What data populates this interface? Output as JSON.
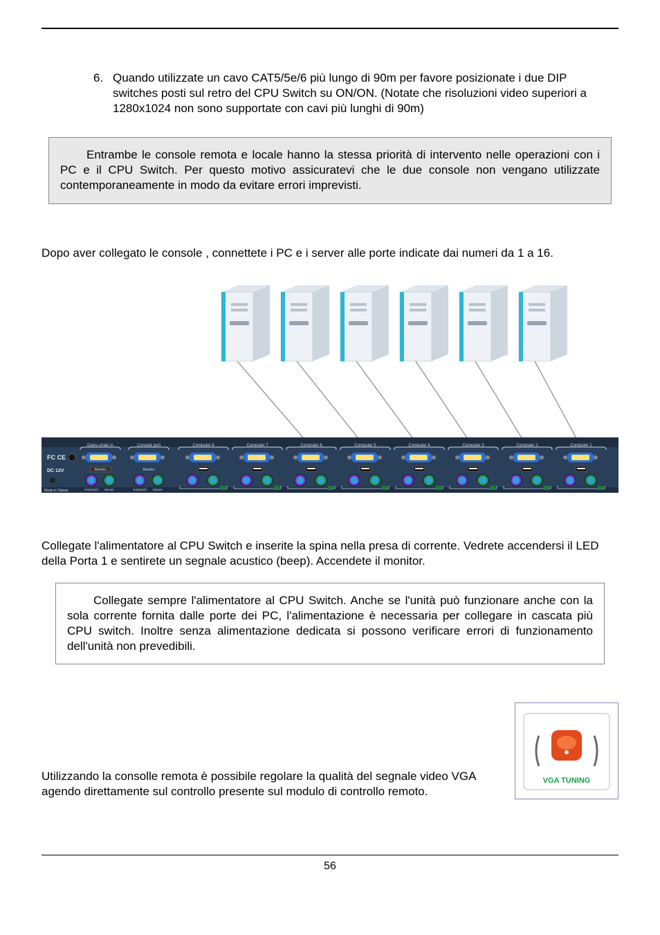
{
  "list": {
    "num": "6.",
    "text": "Quando utilizzate un cavo CAT5/5e/6 più lungo di 90m per favore  posizionate i due DIP switches posti sul retro del CPU Switch su ON/ON. (Notate che risoluzioni video superiori a  1280x1024 non sono supportate con cavi più lunghi di 90m)"
  },
  "note1": "Entrambe le console remota e locale hanno la stessa priorità di intervento nelle operazioni con i PC e il CPU Switch. Per questo motivo assicuratevi che le due console non vengano utilizzate contemporaneamente in modo da evitare errori imprevisti.",
  "p_connect": "Dopo aver collegato le console , connettete i PC e i server alle porte indicate dai numeri da 1 a 16.",
  "p_power": "Collegate l'alimentatore al CPU Switch e inserite la spina nella presa di corrente. Vedrete accendersi il LED della Porta 1 e sentirete un segnale acustico (beep). Accendete il monitor.",
  "note2": "Collegate sempre l'alimentatore al CPU Switch. Anche se l'unità può funzionare anche con la sola corrente fornita dalle porte dei PC, l'alimentazione è necessaria per collegare in cascata più CPU switch. Inoltre senza alimentazione dedicata si possono verificare errori di funzionamento dell'unità non prevedibili.",
  "p_tuning": "Utilizzando la consolle remota è possibile regolare la qualità del segnale video VGA agendo direttamente sul controllo presente sul modulo di controllo remoto.",
  "page_num": "56",
  "diagram": {
    "tower_count": 6,
    "switch_ports": 8,
    "colors": {
      "tower_body": "#eef2f6",
      "tower_front_accent": "#2db6d4",
      "tower_shadow": "#b8c2cc",
      "switch_bg": "#2a3f5a",
      "switch_bg_dark": "#1e2d42",
      "port_vga_blue": "#2a6fd6",
      "port_vga_fill": "#ffe070",
      "port_usb": "#222",
      "port_ps2_kb": "#7b3fe4",
      "port_ps2_ms": "#2b9b55",
      "cable": "#888",
      "fc_ce": "#e6ebf3",
      "labels": "#cfd9e8"
    },
    "left_labels": [
      "FC CE",
      "DC 12V"
    ],
    "top_labels": [
      "Daisy-chain in",
      "Console port"
    ],
    "port_labels": [
      "Computer 8",
      "Computer 7",
      "Computer 6",
      "Computer 5",
      "Computer 4",
      "Computer 3",
      "Computer 2",
      "Computer 1"
    ],
    "bottom_labels": [
      "Keyboard",
      "Mouse",
      "Keyboard",
      "Mouse"
    ],
    "made_in": "Made in Taiwan"
  },
  "tuning": {
    "label": "VGA TUNING",
    "label_color": "#1a9b4b",
    "button_color": "#e2491b",
    "button_highlight": "#ff9a60"
  }
}
